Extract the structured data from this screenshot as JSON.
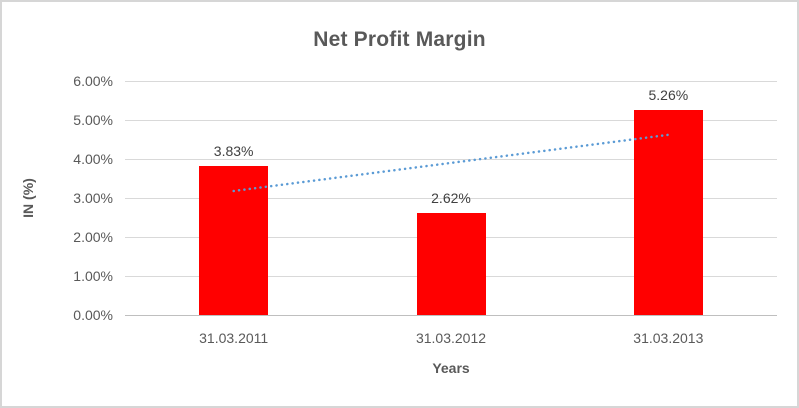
{
  "chart_data": {
    "type": "bar",
    "title": "Net Profit Margin",
    "xlabel": "Years",
    "ylabel": "IN (%)",
    "categories": [
      "31.03.2011",
      "31.03.2012",
      "31.03.2013"
    ],
    "values": [
      3.83,
      2.62,
      5.26
    ],
    "data_labels": [
      "3.83%",
      "2.62%",
      "5.26%"
    ],
    "ylim": [
      0,
      6
    ],
    "ytick_step": 1,
    "ytick_labels": [
      "0.00%",
      "1.00%",
      "2.00%",
      "3.00%",
      "4.00%",
      "5.00%",
      "6.00%"
    ],
    "grid": true,
    "legend": false,
    "bar_color": "#ff0000",
    "trendline": {
      "style": "dotted",
      "color": "#5b9bd5",
      "start_value": 3.18,
      "end_value": 4.62
    },
    "colors": {
      "title": "#595959",
      "tick_label": "#595959",
      "data_label": "#404040",
      "gridline": "#d9d9d9",
      "axis_line": "#bfbfbf",
      "frame_border": "#d6d6d6",
      "background": "#ffffff"
    }
  }
}
